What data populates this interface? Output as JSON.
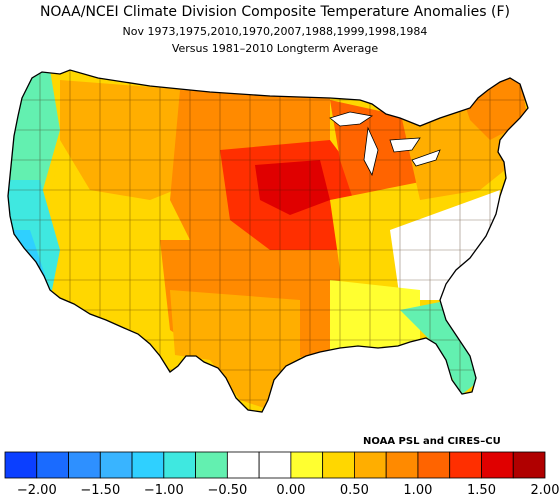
{
  "title": "NOAA/NCEI Climate Division Composite Temperature Anomalies (F)",
  "subtitle": "Nov   1973,1975,2010,1970,2007,1988,1999,1998,1984",
  "subtitle2": "Versus 1981–2010 Longterm Average",
  "credit": "NOAA PSL and CIRES–CU",
  "colorbar": {
    "colors": [
      "#0b3fff",
      "#1a6bff",
      "#2e90ff",
      "#39b4ff",
      "#2fd0ff",
      "#3fe8e0",
      "#63f0b0",
      "#ffffff",
      "#ffffff",
      "#ffff30",
      "#ffd700",
      "#ffae00",
      "#ff8a00",
      "#ff6400",
      "#ff2f00",
      "#e00000",
      "#b00000"
    ],
    "tick_labels": [
      "−2.00",
      "−1.50",
      "−1.00",
      "−0.50",
      "0.00",
      "0.50",
      "1.00",
      "1.50",
      "2.00"
    ]
  },
  "regions": [
    {
      "name": "pacific-northwest-coast",
      "color": "#63f0b0"
    },
    {
      "name": "california-coast",
      "color": "#3fe8e0"
    },
    {
      "name": "great-basin",
      "color": "#ffd700"
    },
    {
      "name": "northern-rockies",
      "color": "#ffae00"
    },
    {
      "name": "southwest",
      "color": "#ffd700"
    },
    {
      "name": "northern-plains",
      "color": "#ff8a00"
    },
    {
      "name": "upper-midwest-core",
      "color": "#ff2f00"
    },
    {
      "name": "southern-plains",
      "color": "#ff8a00"
    },
    {
      "name": "texas",
      "color": "#ffae00"
    },
    {
      "name": "great-lakes",
      "color": "#ff6400"
    },
    {
      "name": "ohio-valley",
      "color": "#ffd700"
    },
    {
      "name": "northeast",
      "color": "#ffae00"
    },
    {
      "name": "new-england",
      "color": "#ff8a00"
    },
    {
      "name": "southeast",
      "color": "#ffffff"
    },
    {
      "name": "gulf-coast",
      "color": "#ffff30"
    },
    {
      "name": "florida",
      "color": "#63f0b0"
    }
  ]
}
